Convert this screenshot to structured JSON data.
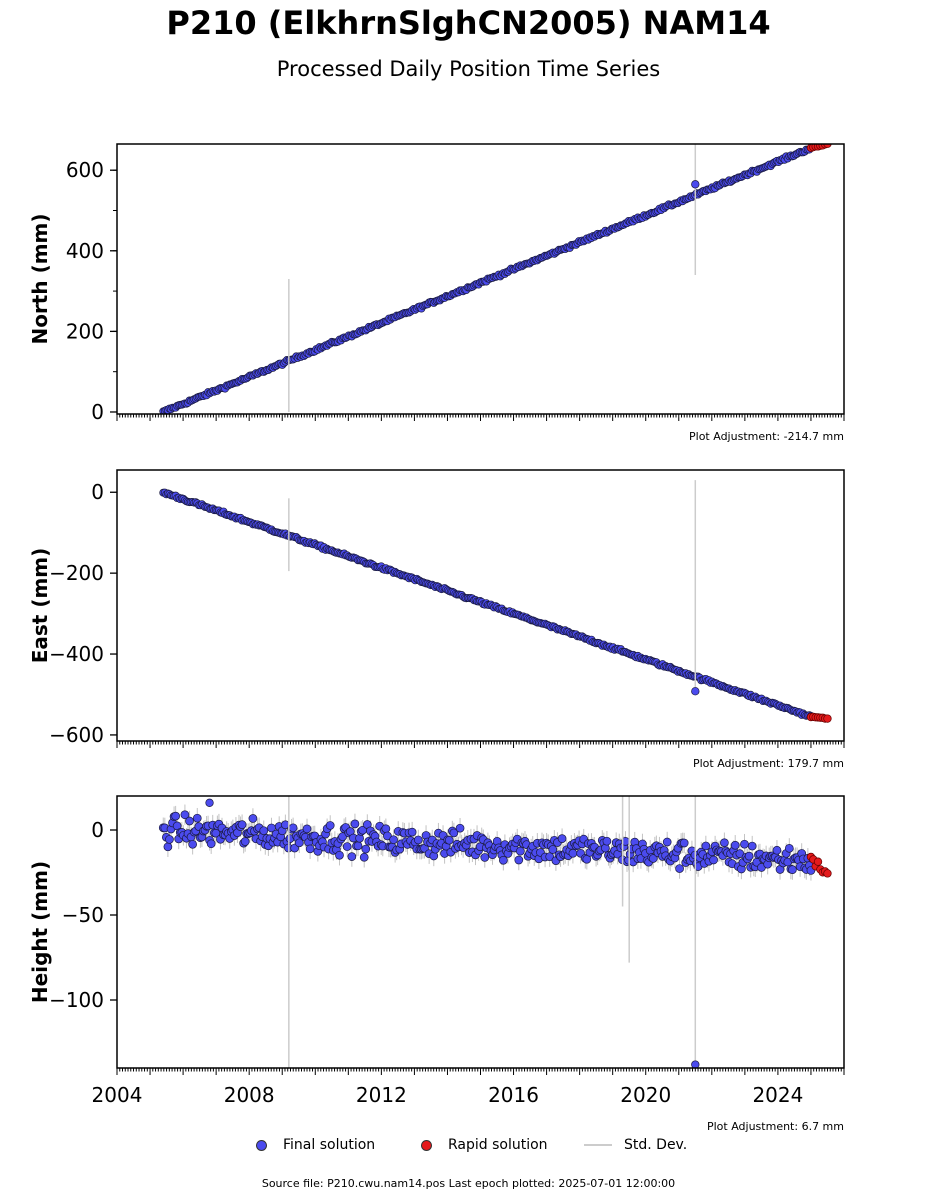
{
  "figure": {
    "title": "P210 (ElkhrnSlghCN2005) NAM14",
    "subtitle": "Processed Daily Position Time Series",
    "source_note": "Source file: P210.cwu.nam14.pos  Last epoch plotted: 2025-07-01 12:00:00"
  },
  "legend": {
    "final": "Final solution",
    "rapid": "Rapid solution",
    "stddev": "Std. Dev."
  },
  "colors": {
    "final": "#4b4bee",
    "final_edge": "#1a1a40",
    "rapid": "#e41a1c",
    "stddev": "#cccccc",
    "axis": "#000000"
  },
  "chart_data": [
    {
      "type": "scatter",
      "panel": "north",
      "ylabel": "North (mm)",
      "ylim": [
        -5,
        665
      ],
      "yticks": [
        0,
        200,
        400,
        600
      ],
      "xlim": [
        2004.0,
        2026.0
      ],
      "adjustment": "Plot Adjustment: -214.7 mm",
      "series": [
        {
          "name": "Final solution",
          "trend": {
            "x": [
              2005.4,
              2025.0
            ],
            "y": [
              0,
              655
            ]
          },
          "noise": 2.5
        },
        {
          "name": "Rapid solution",
          "x": [
            2025.0,
            2025.5
          ],
          "y": [
            655,
            665
          ]
        }
      ],
      "outliers": [
        {
          "x": 2021.5,
          "y": 565
        }
      ],
      "stddev_bars": [
        {
          "x": 2009.2,
          "y0": 0,
          "y1": 330
        },
        {
          "x": 2021.5,
          "y0": 340,
          "y1": 665
        }
      ]
    },
    {
      "type": "scatter",
      "panel": "east",
      "ylabel": "East (mm)",
      "ylim": [
        -615,
        55
      ],
      "yticks": [
        0,
        -200,
        -400,
        -600
      ],
      "xlim": [
        2004.0,
        2026.0
      ],
      "adjustment": "Plot Adjustment: 179.7 mm",
      "series": [
        {
          "name": "Final solution",
          "trend": {
            "x": [
              2005.4,
              2025.0
            ],
            "y": [
              0,
              -555
            ]
          },
          "noise": 2.5
        },
        {
          "name": "Rapid solution",
          "x": [
            2025.0,
            2025.5
          ],
          "y": [
            -555,
            -560
          ]
        }
      ],
      "outliers": [
        {
          "x": 2021.5,
          "y": -492
        }
      ],
      "stddev_bars": [
        {
          "x": 2009.2,
          "y0": -195,
          "y1": -15
        },
        {
          "x": 2021.5,
          "y0": -490,
          "y1": 30
        }
      ]
    },
    {
      "type": "scatter",
      "panel": "height",
      "ylabel": "Height (mm)",
      "ylim": [
        -140,
        20
      ],
      "yticks": [
        0,
        -50,
        -100
      ],
      "xlim": [
        2004.0,
        2026.0
      ],
      "xticks": [
        2004,
        2008,
        2012,
        2016,
        2020,
        2024
      ],
      "adjustment": "Plot Adjustment: 6.7 mm",
      "series": [
        {
          "name": "Final solution",
          "trend": {
            "x": [
              2005.4,
              2025.0
            ],
            "y": [
              0,
              -18
            ]
          },
          "noise": 6
        },
        {
          "name": "Rapid solution",
          "x": [
            2025.0,
            2025.5
          ],
          "y": [
            -18,
            -25
          ]
        }
      ],
      "outliers": [
        {
          "x": 2021.5,
          "y": -138
        },
        {
          "x": 2006.8,
          "y": 16
        }
      ],
      "stddev_bars": [
        {
          "x": 2009.2,
          "y0": -140,
          "y1": 20
        },
        {
          "x": 2019.3,
          "y0": -45,
          "y1": 20
        },
        {
          "x": 2019.5,
          "y0": -78,
          "y1": 20
        },
        {
          "x": 2021.5,
          "y0": -140,
          "y1": 20
        }
      ]
    }
  ]
}
